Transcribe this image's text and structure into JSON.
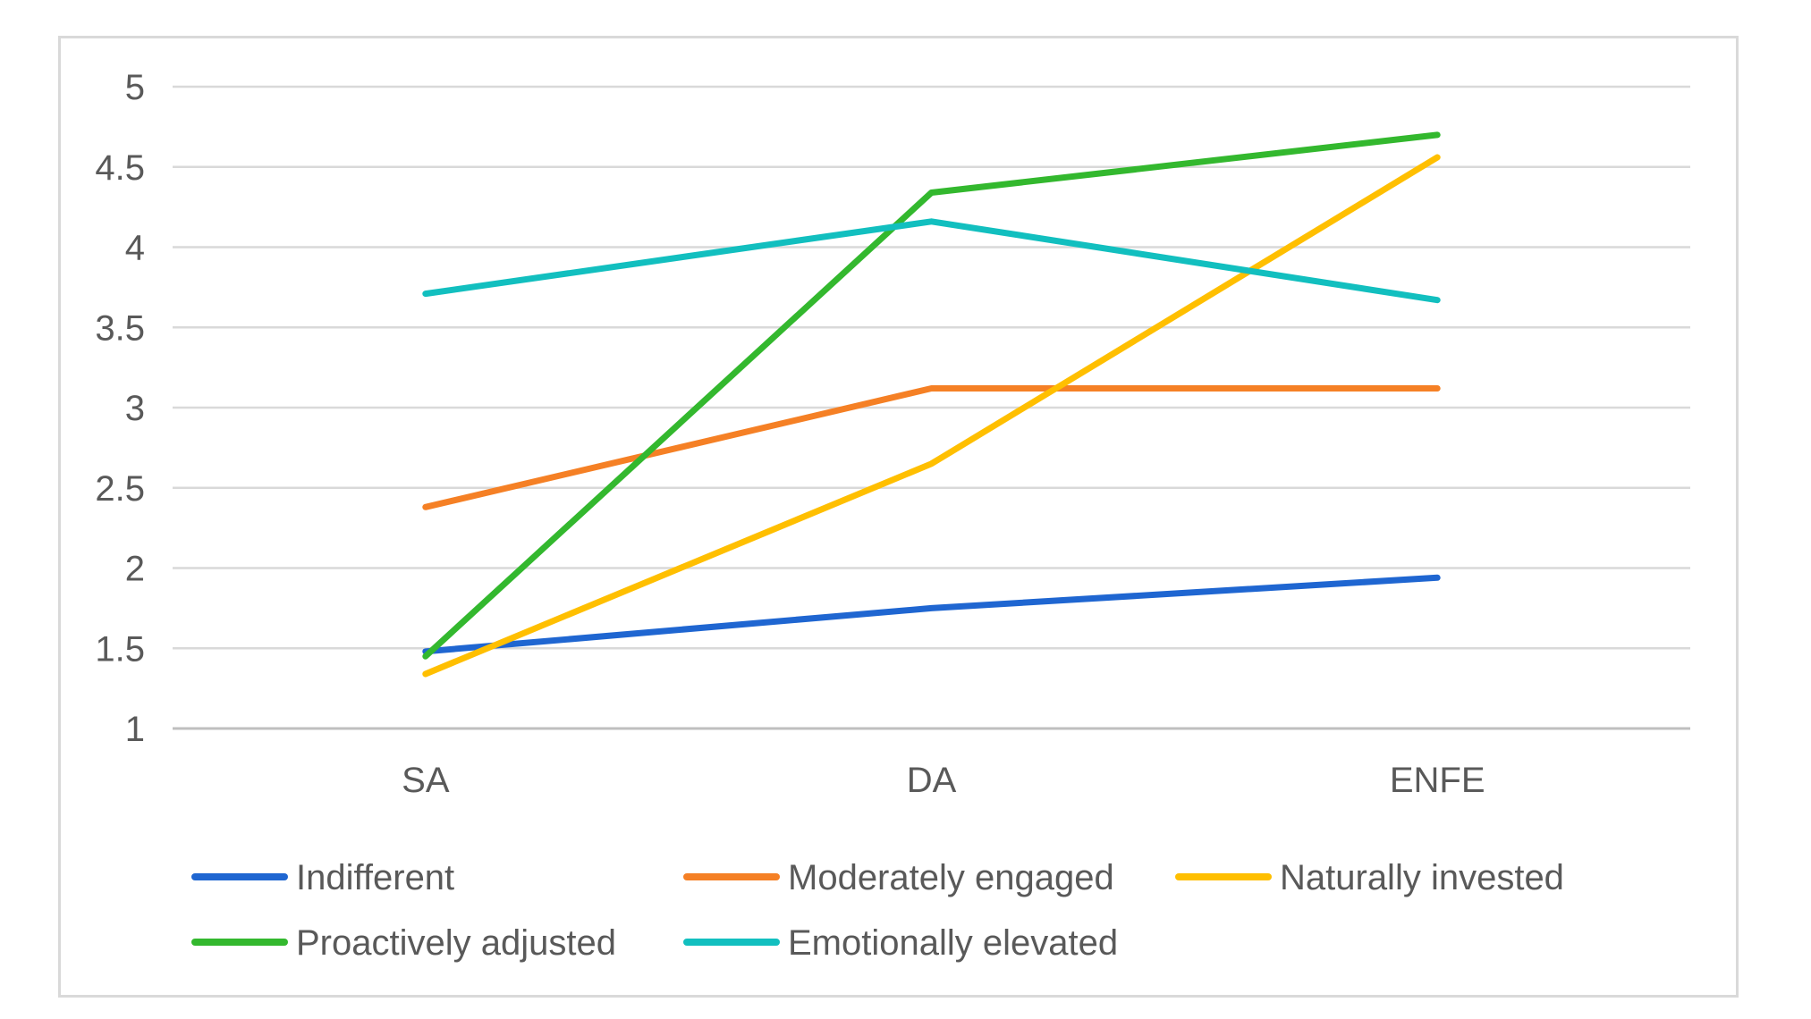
{
  "chart_data": {
    "type": "line",
    "title": "",
    "xlabel": "",
    "ylabel": "",
    "categories": [
      "SA",
      "DA",
      "ENFE"
    ],
    "ylim": [
      1,
      5
    ],
    "yticks": [
      1,
      1.5,
      2,
      2.5,
      3,
      3.5,
      4,
      4.5,
      5
    ],
    "ytick_labels": [
      "1",
      "1.5",
      "2",
      "2.5",
      "3",
      "3.5",
      "4",
      "4.5",
      "5"
    ],
    "grid": true,
    "legend_position": "bottom",
    "series": [
      {
        "name": "Indifferent",
        "color": "#1f66d1",
        "values": [
          1.48,
          1.75,
          1.94
        ]
      },
      {
        "name": "Moderately engaged",
        "color": "#f58025",
        "values": [
          2.38,
          3.12,
          3.12
        ]
      },
      {
        "name": "Naturally invested",
        "color": "#ffbf00",
        "values": [
          1.34,
          2.65,
          4.56
        ]
      },
      {
        "name": "Proactively adjusted",
        "color": "#33b82e",
        "values": [
          1.45,
          4.34,
          4.7
        ]
      },
      {
        "name": "Emotionally elevated",
        "color": "#12bfbf",
        "values": [
          3.71,
          4.16,
          3.67
        ]
      }
    ]
  }
}
